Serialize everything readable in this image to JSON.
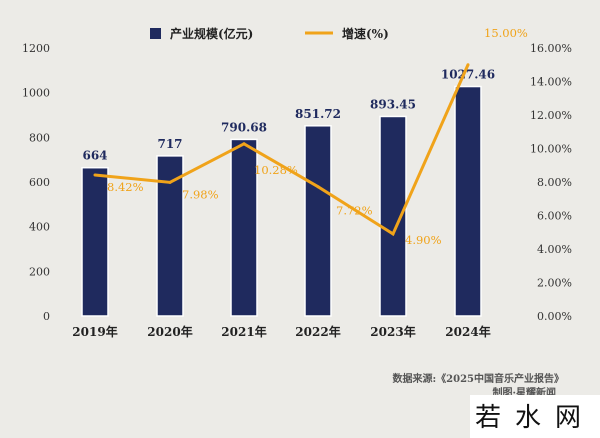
{
  "chart_data": {
    "type": "bar+line",
    "categories": [
      "2019年",
      "2020年",
      "2021年",
      "2022年",
      "2023年",
      "2024年"
    ],
    "series": [
      {
        "name": "产业规模(亿元)",
        "type": "bar",
        "axis": "left",
        "values": [
          664,
          717,
          790.68,
          851.72,
          893.45,
          1027.46
        ],
        "labels": [
          "664",
          "717",
          "790.68",
          "851.72",
          "893.45",
          "1027.46"
        ],
        "color": "#1f2a5e"
      },
      {
        "name": "增速(%)",
        "type": "line",
        "axis": "right",
        "values": [
          8.42,
          7.98,
          10.28,
          7.72,
          4.9,
          15.0
        ],
        "labels": [
          "8.42%",
          "7.98%",
          "10.28%",
          "7.72%",
          "4.90%",
          "15.00%"
        ],
        "color": "#f0a31a"
      }
    ],
    "left_axis": {
      "ylim": [
        0,
        1200
      ],
      "ticks": [
        "0",
        "200",
        "400",
        "600",
        "800",
        "1000",
        "1200"
      ]
    },
    "right_axis": {
      "ylim": [
        0,
        16
      ],
      "ticks": [
        "0.00%",
        "2.00%",
        "4.00%",
        "6.00%",
        "8.00%",
        "10.00%",
        "12.00%",
        "14.00%",
        "16.00%"
      ]
    },
    "legend": "top",
    "grid": false
  },
  "source": "数据来源:《2025中国音乐产业报告》",
  "credit": "制图·星耀新闻",
  "watermark": "若水网"
}
